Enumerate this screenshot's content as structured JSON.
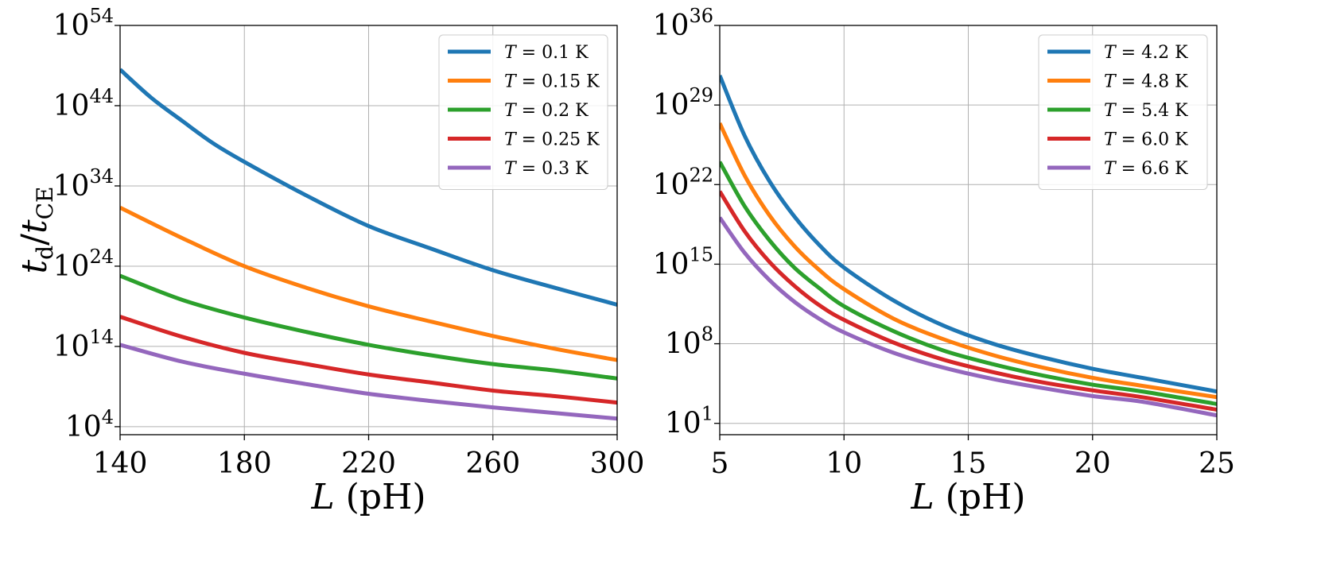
{
  "chart_data": [
    {
      "type": "line",
      "xlabel": "L (pH)",
      "ylabel": "t_d/t_CE",
      "yscale": "log",
      "xlim": [
        140,
        300
      ],
      "ylim_log10": [
        3,
        54
      ],
      "x_ticks": [
        140,
        180,
        220,
        260,
        300
      ],
      "y_tick_exponents": [
        4,
        14,
        24,
        34,
        44,
        54
      ],
      "grid": true,
      "legend_position": "top-right",
      "series": [
        {
          "name": "T = 0.1 K",
          "color": "#1f77b4",
          "x": [
            140,
            150,
            160,
            170,
            180,
            200,
            220,
            240,
            260,
            280,
            300
          ],
          "log10_y": [
            48.5,
            45.0,
            42.1,
            39.3,
            37.0,
            32.8,
            29.0,
            26.2,
            23.5,
            21.3,
            19.2
          ]
        },
        {
          "name": "T = 0.15 K",
          "color": "#ff7f0e",
          "x": [
            140,
            160,
            180,
            200,
            220,
            240,
            260,
            280,
            300
          ],
          "log10_y": [
            31.3,
            27.5,
            24.0,
            21.3,
            19.0,
            17.1,
            15.3,
            13.7,
            12.3
          ]
        },
        {
          "name": "T = 0.2 K",
          "color": "#2ca02c",
          "x": [
            140,
            160,
            180,
            200,
            220,
            240,
            260,
            280,
            300
          ],
          "log10_y": [
            22.8,
            19.8,
            17.6,
            15.8,
            14.2,
            12.9,
            11.8,
            11.0,
            10.0
          ]
        },
        {
          "name": "T = 0.25 K",
          "color": "#d62728",
          "x": [
            140,
            160,
            180,
            200,
            220,
            240,
            260,
            280,
            300
          ],
          "log10_y": [
            17.7,
            15.2,
            13.2,
            11.8,
            10.5,
            9.5,
            8.5,
            7.8,
            7.0
          ]
        },
        {
          "name": "T = 0.3 K",
          "color": "#9467bd",
          "x": [
            140,
            160,
            180,
            200,
            220,
            240,
            260,
            280,
            300
          ],
          "log10_y": [
            14.2,
            12.1,
            10.6,
            9.3,
            8.1,
            7.2,
            6.4,
            5.7,
            5.0
          ]
        }
      ]
    },
    {
      "type": "line",
      "xlabel": "L (pH)",
      "ylabel": "",
      "yscale": "log",
      "xlim": [
        5,
        25
      ],
      "ylim_log10": [
        0,
        36
      ],
      "x_ticks": [
        5,
        10,
        15,
        20,
        25
      ],
      "y_tick_exponents": [
        1,
        8,
        15,
        22,
        29,
        36
      ],
      "grid": true,
      "legend_position": "top-right",
      "series": [
        {
          "name": "T = 4.2 K",
          "color": "#1f77b4",
          "x": [
            5,
            6,
            7,
            8,
            9,
            10,
            12,
            14,
            16,
            18,
            20,
            22,
            25
          ],
          "log10_y": [
            31.6,
            26.3,
            22.3,
            19.2,
            16.7,
            14.7,
            11.8,
            9.6,
            8.0,
            6.8,
            5.8,
            5.0,
            3.8
          ]
        },
        {
          "name": "T = 4.8 K",
          "color": "#ff7f0e",
          "x": [
            5,
            6,
            7,
            8,
            9,
            10,
            12,
            14,
            16,
            18,
            20,
            22,
            25
          ],
          "log10_y": [
            27.4,
            22.8,
            19.3,
            16.6,
            14.5,
            12.8,
            10.2,
            8.4,
            7.0,
            5.9,
            5.0,
            4.3,
            3.3
          ]
        },
        {
          "name": "T = 5.4 K",
          "color": "#2ca02c",
          "x": [
            5,
            6,
            7,
            8,
            9,
            10,
            12,
            14,
            16,
            18,
            20,
            22,
            25
          ],
          "log10_y": [
            24.0,
            20.1,
            17.1,
            14.7,
            12.9,
            11.3,
            9.1,
            7.4,
            6.2,
            5.2,
            4.4,
            3.8,
            2.7
          ]
        },
        {
          "name": "T = 6.0 K",
          "color": "#d62728",
          "x": [
            5,
            6,
            7,
            8,
            9,
            10,
            12,
            14,
            16,
            18,
            20,
            22,
            25
          ],
          "log10_y": [
            21.4,
            17.9,
            15.2,
            13.1,
            11.4,
            10.1,
            8.1,
            6.6,
            5.5,
            4.6,
            3.9,
            3.3,
            2.2
          ]
        },
        {
          "name": "T = 6.6 K",
          "color": "#9467bd",
          "x": [
            5,
            6,
            7,
            8,
            9,
            10,
            12,
            14,
            16,
            18,
            20,
            22,
            25
          ],
          "log10_y": [
            19.1,
            16.0,
            13.6,
            11.7,
            10.2,
            9.0,
            7.2,
            5.9,
            4.9,
            4.1,
            3.4,
            2.9,
            1.7
          ]
        }
      ]
    }
  ]
}
